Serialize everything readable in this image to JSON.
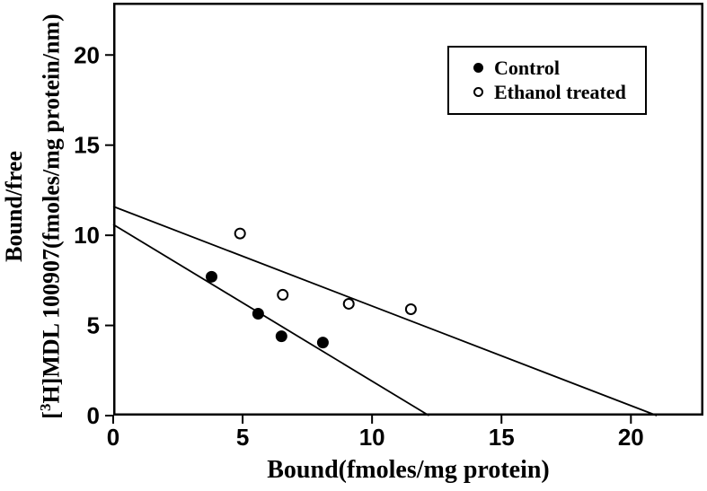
{
  "figure": {
    "background": "#ffffff",
    "ink_color": "#000000"
  },
  "chart_data": {
    "type": "scatter",
    "title": "",
    "xlabel": "Bound(fmoles/mg protein)",
    "ylabel": {
      "line1": "Bound/free",
      "isotope_bracket": "[",
      "isotope_sup": "3",
      "line2_rest": "H]MDL 100907(fmoles/mg protein/nm)"
    },
    "xlim": [
      0,
      22.8
    ],
    "ylim": [
      0,
      22.9
    ],
    "x_ticks": [
      0,
      5,
      10,
      15,
      20
    ],
    "y_ticks": [
      0,
      5,
      10,
      15,
      20
    ],
    "grid": false,
    "legend_position": "upper right",
    "series": [
      {
        "name": "Control",
        "marker": "filled",
        "points": [
          [
            3.8,
            7.7
          ],
          [
            5.6,
            5.65
          ],
          [
            6.5,
            4.4
          ],
          [
            8.1,
            4.05
          ]
        ],
        "fit_line": {
          "y_intercept": 10.6,
          "x_intercept": 12.2
        }
      },
      {
        "name": "Ethanol treated",
        "marker": "open",
        "points": [
          [
            4.9,
            10.1
          ],
          [
            6.55,
            6.7
          ],
          [
            9.1,
            6.2
          ],
          [
            11.5,
            5.9
          ]
        ],
        "fit_line": {
          "y_intercept": 11.6,
          "x_intercept": 21.0
        }
      }
    ]
  }
}
